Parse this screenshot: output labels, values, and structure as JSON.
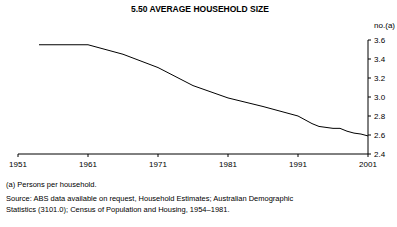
{
  "chart_data": {
    "type": "line",
    "title": "5.50   AVERAGE HOUSEHOLD SIZE",
    "y_label": "no.(a)",
    "footnote": "(a) Persons per household.",
    "source": [
      "Source: ABS data available on request, Household Estimates; Australian Demographic",
      "Statistics (3101.0); Census of Population and Housing, 1954–1981."
    ],
    "x": [
      1954,
      1961,
      1966,
      1971,
      1976,
      1981,
      1986,
      1991,
      1993,
      1994,
      1996,
      1997,
      1998,
      1999,
      2000,
      2001
    ],
    "series": [
      {
        "name": "Average household size",
        "color": "#000000",
        "values": [
          3.55,
          3.55,
          3.45,
          3.31,
          3.12,
          2.99,
          2.9,
          2.8,
          2.72,
          2.69,
          2.67,
          2.67,
          2.64,
          2.62,
          2.61,
          2.59
        ]
      }
    ],
    "xlim": [
      1951,
      2001
    ],
    "xticks": [
      1951,
      1961,
      1971,
      1981,
      1991,
      2001
    ],
    "ylim": [
      2.4,
      3.6
    ],
    "yticks": [
      2.4,
      2.6,
      2.8,
      {
        "value": 3,
        "label": "3.0"
      },
      3.2,
      3.4,
      3.6
    ],
    "grid": false
  }
}
